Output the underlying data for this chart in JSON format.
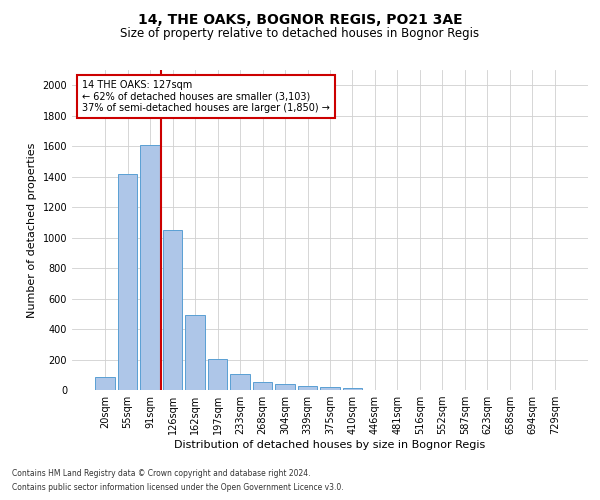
{
  "title": "14, THE OAKS, BOGNOR REGIS, PO21 3AE",
  "subtitle": "Size of property relative to detached houses in Bognor Regis",
  "xlabel": "Distribution of detached houses by size in Bognor Regis",
  "ylabel": "Number of detached properties",
  "categories": [
    "20sqm",
    "55sqm",
    "91sqm",
    "126sqm",
    "162sqm",
    "197sqm",
    "233sqm",
    "268sqm",
    "304sqm",
    "339sqm",
    "375sqm",
    "410sqm",
    "446sqm",
    "481sqm",
    "516sqm",
    "552sqm",
    "587sqm",
    "623sqm",
    "658sqm",
    "694sqm",
    "729sqm"
  ],
  "values": [
    85,
    1420,
    1610,
    1050,
    490,
    205,
    105,
    50,
    38,
    25,
    22,
    15,
    0,
    0,
    0,
    0,
    0,
    0,
    0,
    0,
    0
  ],
  "bar_color": "#aec6e8",
  "bar_edgecolor": "#5a9fd4",
  "vline_color": "#cc0000",
  "annotation_text": "14 THE OAKS: 127sqm\n← 62% of detached houses are smaller (3,103)\n37% of semi-detached houses are larger (1,850) →",
  "annotation_box_color": "#cc0000",
  "ylim": [
    0,
    2100
  ],
  "yticks": [
    0,
    200,
    400,
    600,
    800,
    1000,
    1200,
    1400,
    1600,
    1800,
    2000
  ],
  "footnote1": "Contains HM Land Registry data © Crown copyright and database right 2024.",
  "footnote2": "Contains public sector information licensed under the Open Government Licence v3.0.",
  "background_color": "#ffffff",
  "grid_color": "#d0d0d0",
  "title_fontsize": 10,
  "subtitle_fontsize": 8.5,
  "axis_label_fontsize": 8,
  "tick_fontsize": 7,
  "annotation_fontsize": 7
}
